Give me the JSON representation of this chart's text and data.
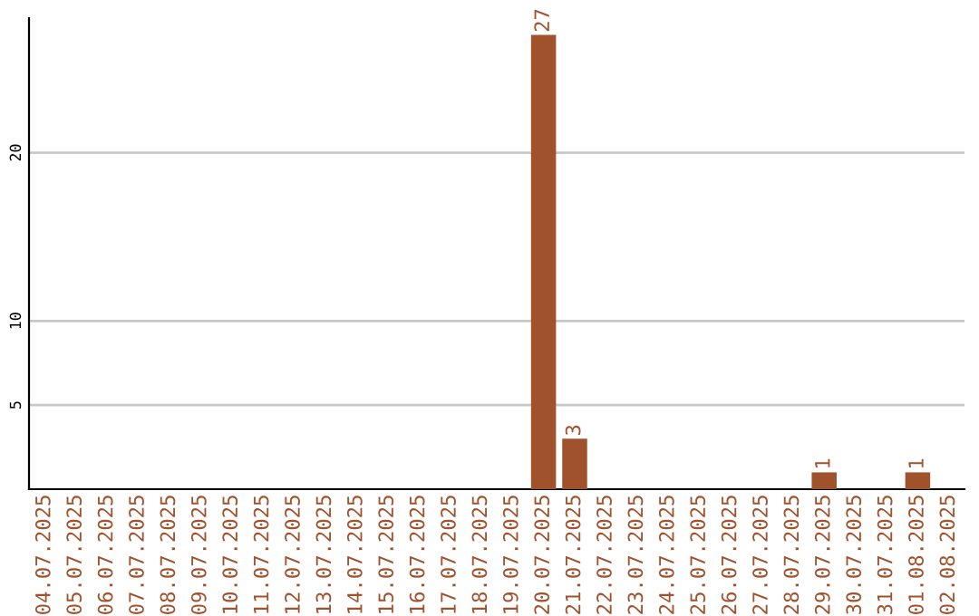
{
  "chart_data": {
    "type": "bar",
    "categories": [
      "04.07.2025",
      "05.07.2025",
      "06.07.2025",
      "07.07.2025",
      "08.07.2025",
      "09.07.2025",
      "10.07.2025",
      "11.07.2025",
      "12.07.2025",
      "13.07.2025",
      "14.07.2025",
      "15.07.2025",
      "16.07.2025",
      "17.07.2025",
      "18.07.2025",
      "19.07.2025",
      "20.07.2025",
      "21.07.2025",
      "22.07.2025",
      "23.07.2025",
      "24.07.2025",
      "25.07.2025",
      "26.07.2025",
      "27.07.2025",
      "28.07.2025",
      "29.07.2025",
      "30.07.2025",
      "31.07.2025",
      "01.08.2025",
      "02.08.2025"
    ],
    "values": [
      0,
      0,
      0,
      0,
      0,
      0,
      0,
      0,
      0,
      0,
      0,
      0,
      0,
      0,
      0,
      0,
      27,
      3,
      0,
      0,
      0,
      0,
      0,
      0,
      0,
      1,
      0,
      0,
      1,
      0
    ],
    "value_labels": [
      null,
      null,
      null,
      null,
      null,
      null,
      null,
      null,
      null,
      null,
      null,
      null,
      null,
      null,
      null,
      null,
      "27",
      "3",
      null,
      null,
      null,
      null,
      null,
      null,
      null,
      "1",
      null,
      null,
      "1",
      null
    ],
    "color": "#a0522d",
    "ylim": [
      0,
      28
    ],
    "yticks": [
      5,
      10,
      20
    ],
    "grid": "y"
  }
}
